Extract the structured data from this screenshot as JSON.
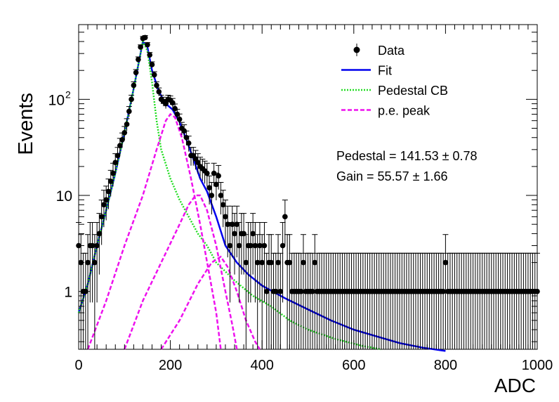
{
  "chart_data": {
    "type": "scatter",
    "title": "",
    "xlabel": "ADC",
    "ylabel": "Events",
    "xlim": [
      0,
      1000
    ],
    "ylim": [
      0.25,
      600
    ],
    "yscale": "log",
    "x_ticks": [
      "0",
      "200",
      "400",
      "600",
      "800",
      "1000"
    ],
    "y_ticks": [
      {
        "value": 1,
        "label": "1"
      },
      {
        "value": 10,
        "label": "10"
      },
      {
        "value": 100,
        "label": "10",
        "sup": "2"
      }
    ],
    "grid": false,
    "legend": {
      "position": "top-right",
      "entries": [
        {
          "label": "Data",
          "kind": "marker",
          "color": "#000000"
        },
        {
          "label": "Fit",
          "kind": "solid",
          "color": "#0000ee"
        },
        {
          "label": "Pedestal CB",
          "kind": "dotted",
          "color": "#22dd22"
        },
        {
          "label": "p.e. peak",
          "kind": "dashed",
          "color": "#ee11ee"
        }
      ]
    },
    "annotations": [
      {
        "text": "Pedestal = 141.53 ± 0.78"
      },
      {
        "text": "Gain = 55.57 ± 1.66"
      }
    ],
    "colors": {
      "data": "#000000",
      "fit": "#0000ee",
      "pedestal": "#22dd22",
      "pe_peak": "#ee11ee"
    },
    "series": [
      {
        "name": "Data",
        "kind": "points",
        "points": [
          [
            0,
            3
          ],
          [
            5,
            2
          ],
          [
            10,
            1
          ],
          [
            15,
            1
          ],
          [
            20,
            2
          ],
          [
            25,
            3
          ],
          [
            30,
            3
          ],
          [
            35,
            2
          ],
          [
            40,
            3
          ],
          [
            45,
            4
          ],
          [
            50,
            6
          ],
          [
            55,
            8
          ],
          [
            60,
            9
          ],
          [
            65,
            11
          ],
          [
            70,
            14
          ],
          [
            75,
            17
          ],
          [
            80,
            22
          ],
          [
            85,
            26
          ],
          [
            90,
            33
          ],
          [
            95,
            38
          ],
          [
            100,
            45
          ],
          [
            105,
            55
          ],
          [
            110,
            75
          ],
          [
            115,
            100
          ],
          [
            120,
            140
          ],
          [
            125,
            190
          ],
          [
            130,
            260
          ],
          [
            135,
            350
          ],
          [
            140,
            430
          ],
          [
            145,
            440
          ],
          [
            150,
            370
          ],
          [
            155,
            290
          ],
          [
            160,
            230
          ],
          [
            165,
            180
          ],
          [
            170,
            140
          ],
          [
            175,
            120
          ],
          [
            180,
            100
          ],
          [
            185,
            95
          ],
          [
            190,
            90
          ],
          [
            195,
            100
          ],
          [
            200,
            98
          ],
          [
            205,
            92
          ],
          [
            210,
            80
          ],
          [
            215,
            70
          ],
          [
            220,
            62
          ],
          [
            225,
            50
          ],
          [
            230,
            47
          ],
          [
            235,
            40
          ],
          [
            240,
            35
          ],
          [
            245,
            26
          ],
          [
            250,
            26
          ],
          [
            255,
            24
          ],
          [
            260,
            22
          ],
          [
            265,
            20
          ],
          [
            270,
            19
          ],
          [
            275,
            18
          ],
          [
            280,
            17
          ],
          [
            285,
            12
          ],
          [
            290,
            10
          ],
          [
            295,
            17
          ],
          [
            300,
            13
          ],
          [
            305,
            16
          ],
          [
            310,
            10
          ],
          [
            315,
            8
          ],
          [
            320,
            6
          ],
          [
            325,
            5
          ],
          [
            330,
            3
          ],
          [
            335,
            5
          ],
          [
            340,
            4
          ],
          [
            345,
            5
          ],
          [
            350,
            3
          ],
          [
            355,
            4
          ],
          [
            360,
            4
          ],
          [
            365,
            2
          ],
          [
            370,
            3
          ],
          [
            375,
            3
          ],
          [
            380,
            4
          ],
          [
            385,
            3
          ],
          [
            390,
            2
          ],
          [
            395,
            3
          ],
          [
            400,
            2
          ],
          [
            405,
            3
          ],
          [
            410,
            1
          ],
          [
            415,
            2
          ],
          [
            420,
            2
          ],
          [
            425,
            1
          ],
          [
            430,
            1
          ],
          [
            435,
            2
          ],
          [
            440,
            1
          ],
          [
            445,
            3
          ],
          [
            450,
            6
          ],
          [
            455,
            2
          ],
          [
            460,
            2
          ],
          [
            465,
            1
          ],
          [
            470,
            1
          ],
          [
            475,
            1
          ],
          [
            480,
            1
          ],
          [
            485,
            1
          ],
          [
            490,
            2
          ],
          [
            495,
            1
          ],
          [
            500,
            1
          ],
          [
            505,
            1
          ],
          [
            510,
            1
          ],
          [
            515,
            2
          ],
          [
            520,
            1
          ],
          [
            525,
            1
          ],
          [
            530,
            1
          ],
          [
            535,
            1
          ],
          [
            540,
            1
          ],
          [
            545,
            1
          ],
          [
            550,
            1
          ],
          [
            555,
            1
          ],
          [
            560,
            1
          ],
          [
            565,
            1
          ],
          [
            570,
            1
          ],
          [
            575,
            1
          ],
          [
            580,
            1
          ],
          [
            585,
            1
          ],
          [
            590,
            1
          ],
          [
            595,
            1
          ],
          [
            600,
            1
          ],
          [
            605,
            1
          ],
          [
            610,
            1
          ],
          [
            615,
            1
          ],
          [
            620,
            1
          ],
          [
            625,
            1
          ],
          [
            630,
            1
          ],
          [
            635,
            1
          ],
          [
            640,
            1
          ],
          [
            645,
            1
          ],
          [
            650,
            1
          ],
          [
            655,
            1
          ],
          [
            660,
            1
          ],
          [
            665,
            1
          ],
          [
            670,
            1
          ],
          [
            675,
            1
          ],
          [
            680,
            1
          ],
          [
            685,
            1
          ],
          [
            690,
            1
          ],
          [
            695,
            1
          ],
          [
            700,
            1
          ],
          [
            705,
            1
          ],
          [
            710,
            1
          ],
          [
            715,
            1
          ],
          [
            720,
            1
          ],
          [
            725,
            1
          ],
          [
            730,
            1
          ],
          [
            735,
            1
          ],
          [
            740,
            1
          ],
          [
            745,
            1
          ],
          [
            750,
            1
          ],
          [
            755,
            1
          ],
          [
            760,
            1
          ],
          [
            765,
            1
          ],
          [
            770,
            1
          ],
          [
            775,
            1
          ],
          [
            780,
            1
          ],
          [
            785,
            1
          ],
          [
            790,
            1
          ],
          [
            795,
            1
          ],
          [
            800,
            2
          ],
          [
            805,
            1
          ],
          [
            810,
            1
          ],
          [
            815,
            1
          ],
          [
            820,
            1
          ],
          [
            825,
            1
          ],
          [
            830,
            1
          ],
          [
            835,
            1
          ],
          [
            840,
            1
          ],
          [
            845,
            1
          ],
          [
            850,
            1
          ],
          [
            855,
            1
          ],
          [
            860,
            1
          ],
          [
            865,
            1
          ],
          [
            870,
            1
          ],
          [
            875,
            1
          ],
          [
            880,
            1
          ],
          [
            885,
            1
          ],
          [
            890,
            1
          ],
          [
            895,
            1
          ],
          [
            900,
            1
          ],
          [
            905,
            1
          ],
          [
            910,
            1
          ],
          [
            915,
            1
          ],
          [
            920,
            1
          ],
          [
            925,
            1
          ],
          [
            930,
            1
          ],
          [
            935,
            1
          ],
          [
            940,
            1
          ],
          [
            945,
            1
          ],
          [
            950,
            1
          ],
          [
            955,
            1
          ],
          [
            960,
            1
          ],
          [
            965,
            1
          ],
          [
            970,
            1
          ],
          [
            975,
            1
          ],
          [
            980,
            1
          ],
          [
            985,
            1
          ],
          [
            990,
            1
          ],
          [
            995,
            1
          ],
          [
            1000,
            1
          ]
        ]
      },
      {
        "name": "Fit",
        "kind": "solid",
        "points": [
          [
            0,
            0.6
          ],
          [
            20,
            1.2
          ],
          [
            40,
            3
          ],
          [
            60,
            7
          ],
          [
            80,
            17
          ],
          [
            100,
            45
          ],
          [
            120,
            130
          ],
          [
            140,
            400
          ],
          [
            150,
            350
          ],
          [
            160,
            200
          ],
          [
            175,
            120
          ],
          [
            190,
            90
          ],
          [
            205,
            78
          ],
          [
            220,
            58
          ],
          [
            235,
            38
          ],
          [
            250,
            24
          ],
          [
            265,
            15
          ],
          [
            280,
            11
          ],
          [
            300,
            6
          ],
          [
            320,
            3
          ],
          [
            345,
            2
          ],
          [
            370,
            1.5
          ],
          [
            400,
            1.15
          ],
          [
            450,
            0.85
          ],
          [
            500,
            0.65
          ],
          [
            550,
            0.5
          ],
          [
            600,
            0.4
          ],
          [
            650,
            0.34
          ],
          [
            700,
            0.29
          ],
          [
            750,
            0.26
          ],
          [
            800,
            0.24
          ]
        ]
      },
      {
        "name": "Pedestal CB",
        "kind": "dotted",
        "points": [
          [
            0,
            0.6
          ],
          [
            20,
            1.2
          ],
          [
            40,
            3
          ],
          [
            60,
            7
          ],
          [
            80,
            17
          ],
          [
            100,
            45
          ],
          [
            120,
            130
          ],
          [
            140,
            400
          ],
          [
            150,
            320
          ],
          [
            160,
            150
          ],
          [
            170,
            60
          ],
          [
            180,
            30
          ],
          [
            200,
            15
          ],
          [
            220,
            9
          ],
          [
            240,
            6
          ],
          [
            260,
            4
          ],
          [
            280,
            3
          ],
          [
            300,
            2
          ],
          [
            340,
            1.3
          ],
          [
            380,
            0.9
          ],
          [
            420,
            0.7
          ],
          [
            460,
            0.5
          ],
          [
            500,
            0.4
          ],
          [
            560,
            0.32
          ],
          [
            620,
            0.27
          ],
          [
            660,
            0.25
          ]
        ]
      },
      {
        "name": "p.e. peak 1",
        "kind": "dashed",
        "points": [
          [
            20,
            0.25
          ],
          [
            60,
            0.8
          ],
          [
            100,
            3
          ],
          [
            140,
            10
          ],
          [
            170,
            30
          ],
          [
            190,
            60
          ],
          [
            200,
            70
          ],
          [
            210,
            65
          ],
          [
            225,
            40
          ],
          [
            245,
            15
          ],
          [
            265,
            5
          ],
          [
            285,
            1.5
          ],
          [
            300,
            0.6
          ],
          [
            310,
            0.25
          ]
        ]
      },
      {
        "name": "p.e. peak 2",
        "kind": "dashed",
        "points": [
          [
            100,
            0.25
          ],
          [
            140,
            0.8
          ],
          [
            180,
            2
          ],
          [
            220,
            5
          ],
          [
            240,
            8
          ],
          [
            255,
            10
          ],
          [
            265,
            10
          ],
          [
            280,
            7
          ],
          [
            300,
            3
          ],
          [
            320,
            1
          ],
          [
            335,
            0.45
          ],
          [
            345,
            0.25
          ]
        ]
      },
      {
        "name": "p.e. peak 3",
        "kind": "dashed",
        "points": [
          [
            180,
            0.25
          ],
          [
            220,
            0.5
          ],
          [
            260,
            1.2
          ],
          [
            290,
            2
          ],
          [
            310,
            2.3
          ],
          [
            325,
            1.8
          ],
          [
            345,
            1
          ],
          [
            365,
            0.5
          ],
          [
            385,
            0.3
          ],
          [
            395,
            0.25
          ]
        ]
      }
    ]
  }
}
